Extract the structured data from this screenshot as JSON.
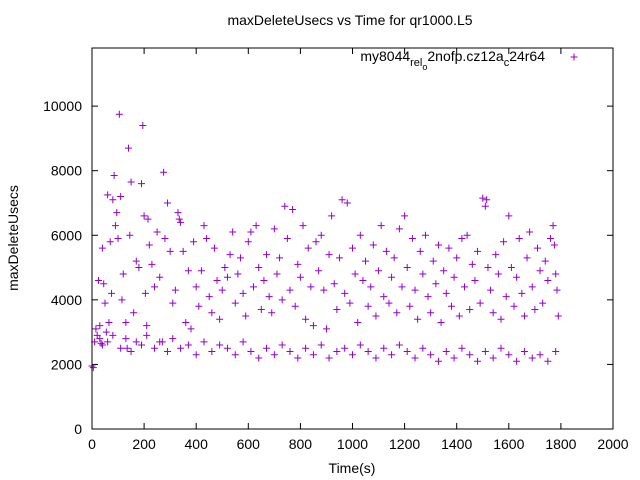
{
  "chart_data": {
    "type": "scatter",
    "title": "maxDeleteUsecs vs Time for qr1000.L5",
    "xlabel": "Time(s)",
    "ylabel": "maxDeleteUsecs",
    "xlim": [
      0,
      2000
    ],
    "ylim": [
      0,
      11800
    ],
    "xticks": [
      "0",
      "200",
      "400",
      "600",
      "800",
      "1000",
      "1200",
      "1400",
      "1600",
      "1800",
      "2000"
    ],
    "yticks": [
      "0",
      "2000",
      "4000",
      "6000",
      "8000",
      "10000"
    ],
    "legend": {
      "position": "top-right",
      "label_parts": [
        "my8044",
        "rel",
        "o",
        "2nofp.cz12a",
        "c",
        "24r64"
      ]
    },
    "series": [
      {
        "name": "my8044_rel_o2nofp.cz12a_c24r64",
        "color": "#9400d3",
        "marker": "+",
        "points": [
          [
            0,
            1950
          ],
          [
            5,
            1900
          ],
          [
            10,
            2700
          ],
          [
            15,
            3100
          ],
          [
            20,
            2900
          ],
          [
            25,
            4600
          ],
          [
            30,
            3200
          ],
          [
            35,
            2650
          ],
          [
            40,
            5600
          ],
          [
            45,
            4500
          ],
          [
            50,
            3900
          ],
          [
            55,
            3000
          ],
          [
            60,
            7250
          ],
          [
            65,
            3300
          ],
          [
            70,
            5800
          ],
          [
            75,
            4200
          ],
          [
            80,
            7100
          ],
          [
            85,
            7850
          ],
          [
            90,
            6300
          ],
          [
            95,
            6700
          ],
          [
            100,
            5900
          ],
          [
            105,
            9750
          ],
          [
            110,
            7200
          ],
          [
            115,
            4000
          ],
          [
            120,
            4800
          ],
          [
            130,
            3300
          ],
          [
            135,
            2500
          ],
          [
            140,
            8700
          ],
          [
            145,
            6000
          ],
          [
            150,
            7650
          ],
          [
            160,
            3600
          ],
          [
            170,
            5200
          ],
          [
            180,
            5000
          ],
          [
            190,
            7600
          ],
          [
            195,
            9400
          ],
          [
            200,
            6600
          ],
          [
            205,
            4200
          ],
          [
            210,
            3200
          ],
          [
            215,
            6500
          ],
          [
            220,
            5700
          ],
          [
            230,
            5100
          ],
          [
            240,
            4400
          ],
          [
            250,
            6100
          ],
          [
            260,
            4700
          ],
          [
            270,
            2700
          ],
          [
            275,
            7950
          ],
          [
            280,
            5900
          ],
          [
            290,
            7000
          ],
          [
            300,
            5500
          ],
          [
            310,
            3900
          ],
          [
            320,
            4300
          ],
          [
            330,
            6700
          ],
          [
            335,
            6500
          ],
          [
            340,
            6400
          ],
          [
            350,
            5500
          ],
          [
            360,
            3300
          ],
          [
            370,
            4900
          ],
          [
            380,
            3100
          ],
          [
            390,
            5800
          ],
          [
            400,
            4400
          ],
          [
            410,
            3800
          ],
          [
            420,
            4900
          ],
          [
            430,
            6300
          ],
          [
            440,
            5900
          ],
          [
            450,
            4100
          ],
          [
            460,
            3600
          ],
          [
            470,
            5600
          ],
          [
            480,
            4600
          ],
          [
            490,
            3400
          ],
          [
            500,
            4300
          ],
          [
            510,
            5000
          ],
          [
            520,
            4700
          ],
          [
            530,
            5400
          ],
          [
            540,
            6100
          ],
          [
            550,
            3900
          ],
          [
            560,
            4800
          ],
          [
            570,
            5300
          ],
          [
            580,
            4200
          ],
          [
            590,
            3500
          ],
          [
            600,
            5800
          ],
          [
            610,
            6100
          ],
          [
            620,
            4400
          ],
          [
            630,
            6300
          ],
          [
            640,
            5000
          ],
          [
            650,
            3700
          ],
          [
            660,
            4600
          ],
          [
            670,
            5400
          ],
          [
            680,
            4100
          ],
          [
            690,
            3600
          ],
          [
            700,
            6200
          ],
          [
            710,
            4800
          ],
          [
            720,
            5300
          ],
          [
            730,
            4000
          ],
          [
            740,
            6900
          ],
          [
            750,
            5900
          ],
          [
            760,
            4300
          ],
          [
            770,
            6800
          ],
          [
            780,
            3800
          ],
          [
            790,
            5100
          ],
          [
            800,
            4700
          ],
          [
            810,
            6300
          ],
          [
            820,
            3400
          ],
          [
            830,
            5600
          ],
          [
            840,
            4400
          ],
          [
            850,
            3200
          ],
          [
            860,
            5800
          ],
          [
            870,
            4900
          ],
          [
            880,
            6000
          ],
          [
            890,
            4300
          ],
          [
            900,
            3100
          ],
          [
            910,
            5400
          ],
          [
            920,
            6600
          ],
          [
            930,
            4500
          ],
          [
            940,
            3700
          ],
          [
            950,
            5300
          ],
          [
            960,
            7100
          ],
          [
            970,
            4200
          ],
          [
            980,
            7000
          ],
          [
            990,
            3900
          ],
          [
            1000,
            5600
          ],
          [
            1010,
            4800
          ],
          [
            1020,
            3300
          ],
          [
            1030,
            6000
          ],
          [
            1040,
            4600
          ],
          [
            1050,
            5200
          ],
          [
            1060,
            3800
          ],
          [
            1070,
            4400
          ],
          [
            1080,
            5700
          ],
          [
            1090,
            3500
          ],
          [
            1100,
            4900
          ],
          [
            1110,
            6300
          ],
          [
            1120,
            4100
          ],
          [
            1130,
            5500
          ],
          [
            1140,
            3900
          ],
          [
            1150,
            4700
          ],
          [
            1160,
            5300
          ],
          [
            1170,
            3600
          ],
          [
            1180,
            6200
          ],
          [
            1190,
            4400
          ],
          [
            1200,
            6600
          ],
          [
            1210,
            5000
          ],
          [
            1220,
            3800
          ],
          [
            1230,
            5900
          ],
          [
            1240,
            4300
          ],
          [
            1250,
            3400
          ],
          [
            1260,
            5500
          ],
          [
            1270,
            4800
          ],
          [
            1280,
            6000
          ],
          [
            1290,
            4100
          ],
          [
            1300,
            3600
          ],
          [
            1310,
            5200
          ],
          [
            1320,
            4500
          ],
          [
            1330,
            5700
          ],
          [
            1340,
            3300
          ],
          [
            1350,
            4900
          ],
          [
            1360,
            4200
          ],
          [
            1370,
            5600
          ],
          [
            1380,
            3800
          ],
          [
            1390,
            4700
          ],
          [
            1400,
            5300
          ],
          [
            1410,
            3500
          ],
          [
            1420,
            5900
          ],
          [
            1430,
            4400
          ],
          [
            1440,
            6000
          ],
          [
            1450,
            3700
          ],
          [
            1460,
            5100
          ],
          [
            1470,
            4600
          ],
          [
            1480,
            5500
          ],
          [
            1490,
            3900
          ],
          [
            1500,
            7150
          ],
          [
            1510,
            6900
          ],
          [
            1515,
            7100
          ],
          [
            1520,
            5000
          ],
          [
            1530,
            4300
          ],
          [
            1540,
            3600
          ],
          [
            1550,
            5400
          ],
          [
            1560,
            4800
          ],
          [
            1570,
            3400
          ],
          [
            1580,
            5800
          ],
          [
            1590,
            4100
          ],
          [
            1600,
            6600
          ],
          [
            1610,
            5000
          ],
          [
            1620,
            3800
          ],
          [
            1630,
            4700
          ],
          [
            1640,
            5900
          ],
          [
            1650,
            4200
          ],
          [
            1660,
            3500
          ],
          [
            1670,
            5300
          ],
          [
            1680,
            6100
          ],
          [
            1690,
            4400
          ],
          [
            1700,
            3700
          ],
          [
            1710,
            5600
          ],
          [
            1720,
            4900
          ],
          [
            1730,
            3900
          ],
          [
            1740,
            5200
          ],
          [
            1750,
            4600
          ],
          [
            1760,
            5900
          ],
          [
            1770,
            6300
          ],
          [
            1775,
            5700
          ],
          [
            1780,
            4800
          ],
          [
            1785,
            4300
          ],
          [
            1790,
            3500
          ],
          [
            30,
            2800
          ],
          [
            40,
            2600
          ],
          [
            60,
            2700
          ],
          [
            80,
            2900
          ],
          [
            110,
            2500
          ],
          [
            130,
            2800
          ],
          [
            150,
            2400
          ],
          [
            170,
            2700
          ],
          [
            190,
            2600
          ],
          [
            210,
            2900
          ],
          [
            240,
            2500
          ],
          [
            260,
            2700
          ],
          [
            290,
            2400
          ],
          [
            310,
            2800
          ],
          [
            340,
            2500
          ],
          [
            370,
            2600
          ],
          [
            400,
            2300
          ],
          [
            430,
            2700
          ],
          [
            460,
            2400
          ],
          [
            490,
            2600
          ],
          [
            520,
            2500
          ],
          [
            550,
            2300
          ],
          [
            580,
            2700
          ],
          [
            610,
            2400
          ],
          [
            640,
            2200
          ],
          [
            670,
            2500
          ],
          [
            700,
            2300
          ],
          [
            730,
            2600
          ],
          [
            760,
            2400
          ],
          [
            790,
            2200
          ],
          [
            820,
            2500
          ],
          [
            850,
            2300
          ],
          [
            880,
            2600
          ],
          [
            910,
            2200
          ],
          [
            940,
            2400
          ],
          [
            970,
            2500
          ],
          [
            1000,
            2300
          ],
          [
            1030,
            2600
          ],
          [
            1060,
            2400
          ],
          [
            1090,
            2200
          ],
          [
            1120,
            2500
          ],
          [
            1150,
            2300
          ],
          [
            1180,
            2600
          ],
          [
            1210,
            2400
          ],
          [
            1240,
            2200
          ],
          [
            1270,
            2500
          ],
          [
            1300,
            2300
          ],
          [
            1330,
            2100
          ],
          [
            1360,
            2400
          ],
          [
            1390,
            2200
          ],
          [
            1420,
            2500
          ],
          [
            1450,
            2300
          ],
          [
            1480,
            2100
          ],
          [
            1510,
            2400
          ],
          [
            1540,
            2200
          ],
          [
            1570,
            2500
          ],
          [
            1600,
            2300
          ],
          [
            1630,
            2100
          ],
          [
            1660,
            2400
          ],
          [
            1690,
            2200
          ],
          [
            1720,
            2300
          ],
          [
            1750,
            2100
          ],
          [
            1780,
            2400
          ]
        ]
      }
    ]
  }
}
